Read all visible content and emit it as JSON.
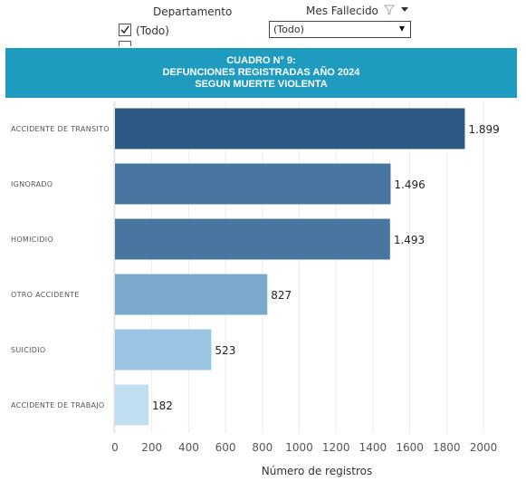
{
  "filters": {
    "department": {
      "label": "Departamento",
      "option_label": "(Todo)",
      "checked": true
    },
    "month": {
      "label": "Mes Fallecido",
      "value": "(Todo)"
    }
  },
  "banner": {
    "line1": "CUADRO N° 9:",
    "line2": "DEFUNCIONES REGISTRADAS AÑO 2024",
    "line3": "SEGUN MUERTE VIOLENTA"
  },
  "chart_data": {
    "type": "bar",
    "orientation": "horizontal",
    "categories": [
      "ACCIDENTE DE TRANSITO",
      "IGNORADO",
      "HOMICIDIO",
      "OTRO ACCIDENTE",
      "SUICIDIO",
      "ACCIDENTE DE TRABAJO"
    ],
    "values": [
      1899,
      1496,
      1493,
      827,
      523,
      182
    ],
    "value_labels": [
      "1.899",
      "1.496",
      "1.493",
      "827",
      "523",
      "182"
    ],
    "colors": [
      "#2c5a84",
      "#4876a0",
      "#4876a0",
      "#7aa9cc",
      "#9ac5e2",
      "#bfdff0"
    ],
    "xlabel": "Número de registros",
    "xlim": [
      0,
      2000
    ],
    "xticks": [
      0,
      200,
      400,
      600,
      800,
      1000,
      1200,
      1400,
      1600,
      1800,
      2000
    ],
    "grid": true
  }
}
